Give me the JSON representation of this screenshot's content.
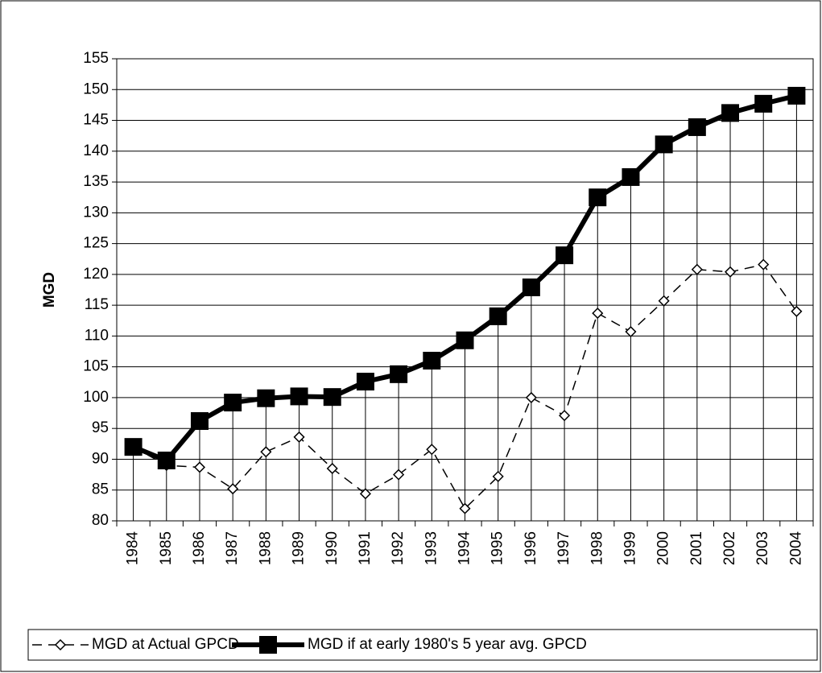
{
  "chart_data": {
    "type": "line",
    "y_label": "MGD",
    "categories": [
      "1984",
      "1985",
      "1986",
      "1987",
      "1988",
      "1989",
      "1990",
      "1991",
      "1992",
      "1993",
      "1994",
      "1995",
      "1996",
      "1997",
      "1998",
      "1999",
      "2000",
      "2001",
      "2002",
      "2003",
      "2004"
    ],
    "series": [
      {
        "name": "MGD at Actual GPCD",
        "color": "#000000",
        "style": "dashed",
        "marker": "diamond",
        "values": [
          92,
          89,
          88.7,
          85.2,
          91.2,
          93.6,
          88.5,
          84.4,
          87.5,
          91.6,
          82.0,
          87.2,
          100.0,
          97.1,
          113.7,
          110.7,
          115.7,
          120.8,
          120.4,
          121.6,
          114.0
        ]
      },
      {
        "name": "MGD if at early 1980's 5 year avg. GPCD",
        "color": "#000000",
        "style": "solid",
        "marker": "square",
        "values": [
          92.0,
          89.8,
          96.2,
          99.2,
          99.9,
          100.2,
          100.1,
          102.6,
          103.8,
          106.0,
          109.3,
          113.2,
          117.9,
          123.1,
          132.5,
          135.8,
          141.1,
          143.9,
          146.2,
          147.7,
          149.0
        ]
      }
    ],
    "ylim": [
      80,
      155
    ],
    "yticks": [
      80,
      85,
      90,
      95,
      100,
      105,
      110,
      115,
      120,
      125,
      130,
      135,
      140,
      145,
      150,
      155
    ],
    "grid": true,
    "drop_lines": true,
    "legend": "bottom"
  }
}
